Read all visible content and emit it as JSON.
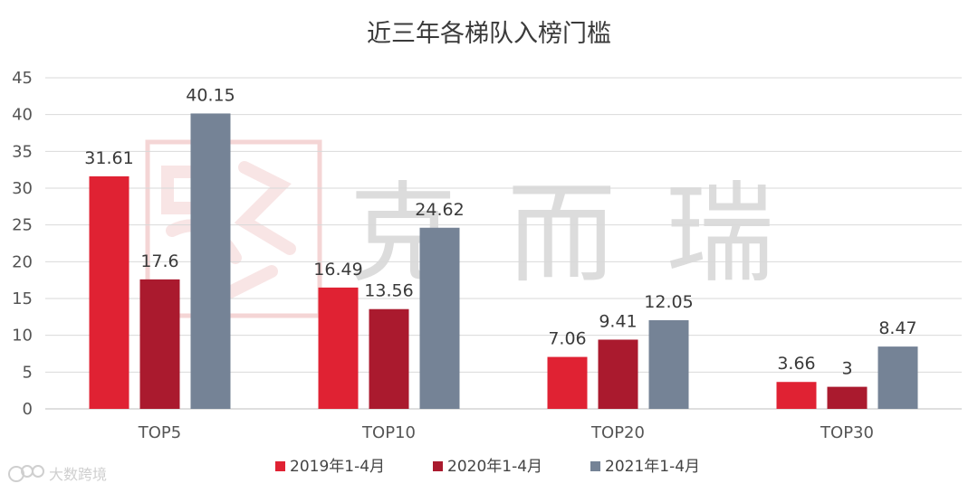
{
  "chart_data": {
    "type": "bar",
    "title": "近三年各梯队入榜门槛",
    "categories": [
      "TOP5",
      "TOP10",
      "TOP20",
      "TOP30"
    ],
    "series": [
      {
        "name": "2019年1-4月",
        "color": "#e02233",
        "values": [
          31.61,
          16.49,
          7.06,
          3.66
        ]
      },
      {
        "name": "2020年1-4月",
        "color": "#aa1a2e",
        "values": [
          17.6,
          13.56,
          9.41,
          3
        ]
      },
      {
        "name": "2021年1-4月",
        "color": "#758396",
        "values": [
          40.15,
          24.62,
          12.05,
          8.47
        ]
      }
    ],
    "ylim": [
      0,
      45
    ],
    "yticks": [
      0,
      5,
      10,
      15,
      20,
      25,
      30,
      35,
      40,
      45
    ],
    "grid": true,
    "legend": "bottom",
    "xlabel": "",
    "ylabel": ""
  },
  "watermark": {
    "text": "克而瑞",
    "seal_icon": "seal-stamp-icon"
  },
  "brand": {
    "text": "大数跨境",
    "icon": "brand-logo-icon"
  }
}
